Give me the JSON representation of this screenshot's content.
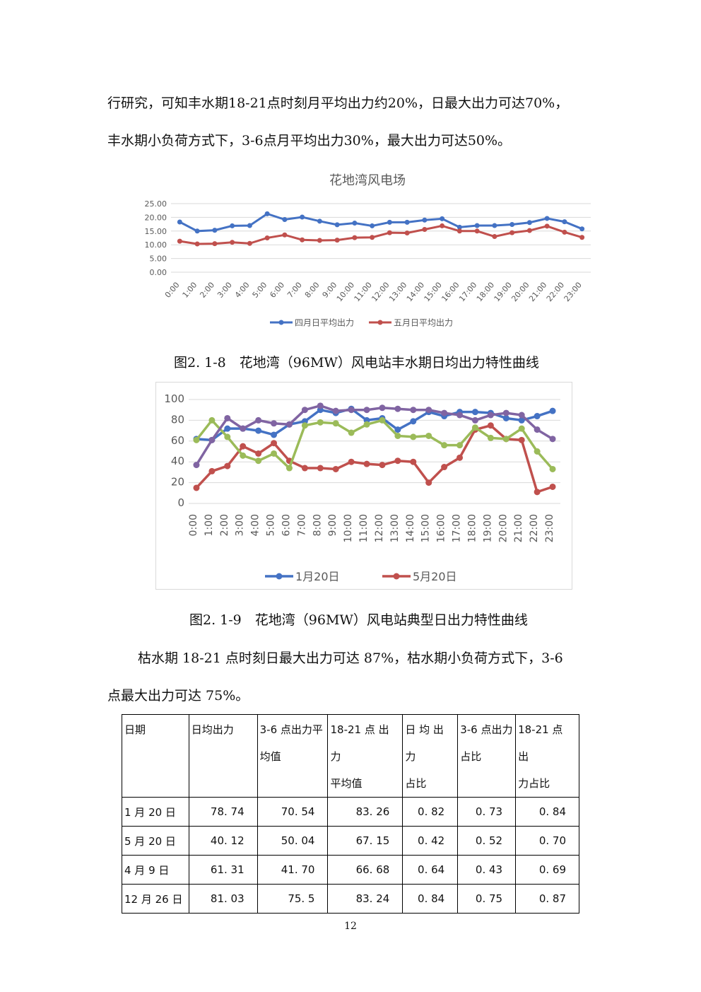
{
  "paragraphs": {
    "p1_line1": "行研究，可知丰水期18-21点时刻月平均出力约20%，日最大出力可达70%，",
    "p1_line2": "丰水期小负荷方式下，3-6点月平均出力30%，最大出力可达50%。",
    "p2_line1": "枯水期 18-21 点时刻日最大出力可达 87%，枯水期小负荷方式下，3-6",
    "p2_line2": "点最大出力可达 75%。"
  },
  "captions": {
    "fig1": "图2. 1-8　花地湾（96MW）风电站丰水期日均出力特性曲线",
    "fig2": "图2. 1-9　花地湾（96MW）风电站典型日出力特性曲线"
  },
  "chart_data": [
    {
      "type": "line",
      "title": "花地湾风电场",
      "categories": [
        "0:00",
        "1:00",
        "2:00",
        "3:00",
        "4:00",
        "5:00",
        "6:00",
        "7:00",
        "8:00",
        "9:00",
        "10:00",
        "11:00",
        "12:00",
        "13:00",
        "14:00",
        "15:00",
        "16:00",
        "17:00",
        "18:00",
        "19:00",
        "20:00",
        "21:00",
        "22:00",
        "23:00"
      ],
      "yticks": [
        "25.00",
        "20.00",
        "15.00",
        "10.00",
        "5.00",
        "0.00"
      ],
      "ylim": [
        0,
        25
      ],
      "grid": true,
      "legend": "bottom",
      "series": [
        {
          "name": "四月日平均出力",
          "color": "#4472C4",
          "values": [
            18.3,
            15.0,
            15.3,
            16.9,
            17.0,
            21.3,
            19.2,
            20.1,
            18.6,
            17.3,
            17.9,
            16.9,
            18.2,
            18.2,
            19.0,
            19.5,
            16.4,
            17.0,
            17.0,
            17.4,
            18.1,
            19.6,
            18.4,
            15.8
          ]
        },
        {
          "name": "五月日平均出力",
          "color": "#C0504D",
          "values": [
            11.3,
            10.3,
            10.4,
            10.9,
            10.5,
            12.5,
            13.6,
            11.8,
            11.6,
            11.7,
            12.6,
            12.7,
            14.4,
            14.3,
            15.6,
            16.9,
            15.0,
            15.0,
            13.0,
            14.4,
            15.2,
            16.8,
            14.6,
            12.7
          ]
        }
      ]
    },
    {
      "type": "line",
      "categories": [
        "0:00",
        "1:00",
        "2:00",
        "3:00",
        "4:00",
        "5:00",
        "6:00",
        "7:00",
        "8:00",
        "9:00",
        "10:00",
        "11:00",
        "12:00",
        "13:00",
        "14:00",
        "15:00",
        "16:00",
        "17:00",
        "18:00",
        "19:00",
        "20:00",
        "21:00",
        "22:00",
        "23:00"
      ],
      "yticks": [
        "100",
        "80",
        "60",
        "40",
        "20",
        "0"
      ],
      "ylim": [
        0,
        100
      ],
      "grid": true,
      "legend": "bottom",
      "series": [
        {
          "name": "1月20日",
          "color": "#4472C4",
          "values": [
            62,
            61,
            72,
            72,
            70,
            66,
            76,
            79,
            90,
            87,
            91,
            80,
            82,
            71,
            79,
            88,
            84,
            88,
            88,
            87,
            82,
            80,
            84,
            89
          ]
        },
        {
          "name": "5月20日",
          "color": "#C0504D",
          "values": [
            15,
            31,
            36,
            55,
            48,
            58,
            41,
            34,
            34,
            33,
            40,
            38,
            37,
            41,
            40,
            20,
            35,
            44,
            71,
            75,
            62,
            61,
            11,
            16
          ]
        },
        {
          "name": "",
          "color": "#9BBB59",
          "values": [
            61,
            80,
            64,
            46,
            41,
            48,
            34,
            75,
            78,
            77,
            68,
            76,
            80,
            65,
            64,
            65,
            56,
            56,
            73,
            63,
            62,
            72,
            50,
            33
          ]
        },
        {
          "name": "",
          "color": "#8064A2",
          "values": [
            37,
            61,
            82,
            72,
            80,
            77,
            76,
            90,
            94,
            89,
            90,
            90,
            92,
            91,
            90,
            90,
            87,
            85,
            80,
            85,
            87,
            85,
            71,
            62
          ]
        }
      ]
    }
  ],
  "table": {
    "headers": [
      [
        "日期"
      ],
      [
        "日均出力"
      ],
      [
        "3-6 点出力平",
        "均值"
      ],
      [
        "18-21 点 出 力",
        "平均值"
      ],
      [
        "日 均 出 力",
        "占比"
      ],
      [
        "3-6 点出力",
        "占比"
      ],
      [
        "18-21 点 出",
        "力占比"
      ]
    ],
    "rows": [
      [
        "1 月 20 日",
        "78. 74",
        "70. 54",
        "83. 26",
        "0. 82",
        "0. 73",
        "0. 84"
      ],
      [
        "5 月 20 日",
        "40. 12",
        "50. 04",
        "67. 15",
        "0. 42",
        "0. 52",
        "0. 70"
      ],
      [
        "4 月 9 日",
        "61. 31",
        "41. 70",
        "66. 68",
        "0. 64",
        "0. 43",
        "0. 69"
      ],
      [
        "12 月 26 日",
        "81. 03",
        "75. 5",
        "83. 24",
        "0. 84",
        "0. 75",
        "0. 87"
      ]
    ]
  },
  "page_number": "12"
}
